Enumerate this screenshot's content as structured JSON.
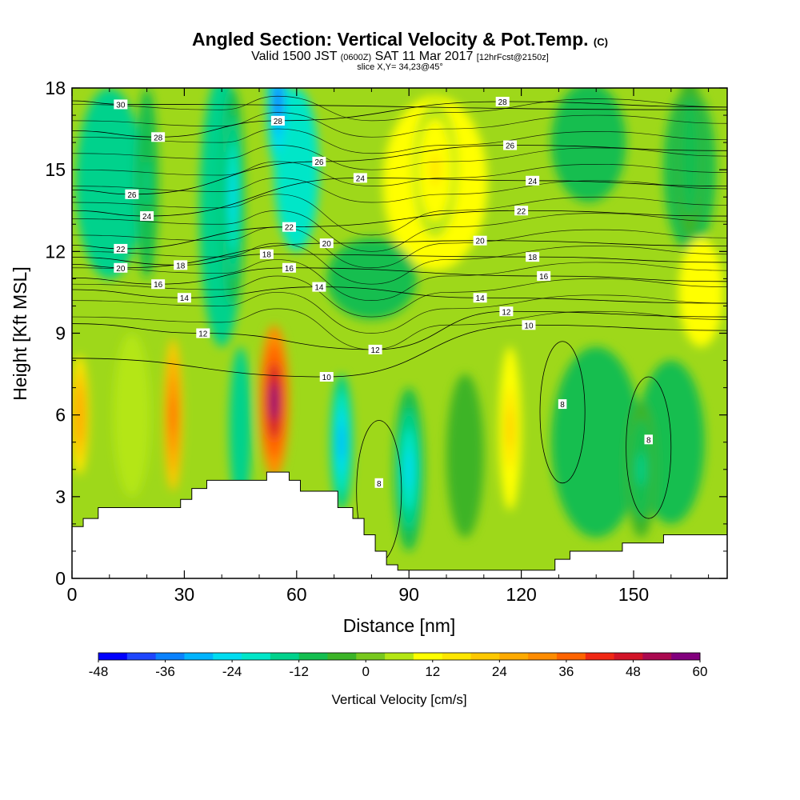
{
  "title": {
    "main": "Angled Section: Vertical Velocity & Pot.Temp.",
    "main_sup": "(C)",
    "valid_prefix": "Valid 1500 JST",
    "valid_small1": "(0600Z)",
    "valid_mid": "SAT 11 Mar 2017",
    "valid_small2": "[12hrFcst@2150z]",
    "slice": "slice X,Y= 34,23@45°"
  },
  "chart_data": {
    "type": "heatmap",
    "xlabel": "Distance [nm]",
    "ylabel": "Height [Kft MSL]",
    "xlim": [
      0,
      175
    ],
    "ylim": [
      0,
      18
    ],
    "x_ticks": [
      0,
      30,
      60,
      90,
      120,
      150
    ],
    "x_tick_labels": [
      "0",
      "30",
      "60",
      "90",
      "120",
      "150"
    ],
    "y_ticks": [
      0,
      3,
      6,
      9,
      12,
      15,
      18
    ],
    "y_tick_labels": [
      "0",
      "3",
      "6",
      "9",
      "12",
      "15",
      "18"
    ],
    "colorbar": {
      "title": "Vertical Velocity [cm/s]",
      "min": -48,
      "max": 60,
      "tick_values": [
        -48,
        -36,
        -24,
        -12,
        0,
        12,
        24,
        36,
        48,
        60
      ],
      "tick_labels": [
        "-48",
        "-36",
        "-24",
        "-12",
        "0",
        "12",
        "24",
        "36",
        "48",
        "60"
      ],
      "colors": [
        "#0000ff",
        "#1e46ff",
        "#0a82ff",
        "#00b4ff",
        "#00dcf0",
        "#00e6c8",
        "#00d28c",
        "#14be50",
        "#3cb428",
        "#78c81e",
        "#b4e614",
        "#ffff00",
        "#ffe600",
        "#ffc800",
        "#ffaa00",
        "#ff8c00",
        "#ff6400",
        "#f02814",
        "#d21428",
        "#aa0a50",
        "#82007d"
      ]
    },
    "terrain_kft": [
      [
        0,
        1.9
      ],
      [
        3,
        1.9
      ],
      [
        3,
        2.2
      ],
      [
        7,
        2.2
      ],
      [
        7,
        2.6
      ],
      [
        29,
        2.6
      ],
      [
        29,
        2.9
      ],
      [
        32,
        2.9
      ],
      [
        32,
        3.3
      ],
      [
        36,
        3.3
      ],
      [
        36,
        3.6
      ],
      [
        52,
        3.6
      ],
      [
        52,
        3.9
      ],
      [
        58,
        3.9
      ],
      [
        58,
        3.6
      ],
      [
        61,
        3.6
      ],
      [
        61,
        3.2
      ],
      [
        71,
        3.2
      ],
      [
        71,
        2.6
      ],
      [
        75,
        2.6
      ],
      [
        75,
        2.2
      ],
      [
        78,
        2.2
      ],
      [
        78,
        1.6
      ],
      [
        81,
        1.6
      ],
      [
        81,
        1.0
      ],
      [
        84,
        1.0
      ],
      [
        84,
        0.5
      ],
      [
        87,
        0.5
      ],
      [
        87,
        0.3
      ],
      [
        129,
        0.3
      ],
      [
        129,
        0.7
      ],
      [
        133,
        0.7
      ],
      [
        133,
        1.0
      ],
      [
        147,
        1.0
      ],
      [
        147,
        1.3
      ],
      [
        158,
        1.3
      ],
      [
        158,
        1.6
      ],
      [
        175,
        1.6
      ]
    ],
    "theta_contour_labels": [
      {
        "value": "30",
        "x": 13,
        "y": 17.4
      },
      {
        "value": "28",
        "x": 23,
        "y": 16.2
      },
      {
        "value": "28",
        "x": 55,
        "y": 16.8
      },
      {
        "value": "28",
        "x": 115,
        "y": 17.5
      },
      {
        "value": "26",
        "x": 16,
        "y": 14.1
      },
      {
        "value": "26",
        "x": 66,
        "y": 15.3
      },
      {
        "value": "26",
        "x": 117,
        "y": 15.9
      },
      {
        "value": "24",
        "x": 20,
        "y": 13.3
      },
      {
        "value": "24",
        "x": 77,
        "y": 14.7
      },
      {
        "value": "24",
        "x": 123,
        "y": 14.6
      },
      {
        "value": "22",
        "x": 13,
        "y": 12.1
      },
      {
        "value": "22",
        "x": 58,
        "y": 12.9
      },
      {
        "value": "22",
        "x": 120,
        "y": 13.5
      },
      {
        "value": "20",
        "x": 13,
        "y": 11.4
      },
      {
        "value": "20",
        "x": 68,
        "y": 12.3
      },
      {
        "value": "20",
        "x": 109,
        "y": 12.4
      },
      {
        "value": "18",
        "x": 29,
        "y": 11.5
      },
      {
        "value": "18",
        "x": 52,
        "y": 11.9
      },
      {
        "value": "18",
        "x": 123,
        "y": 11.8
      },
      {
        "value": "16",
        "x": 23,
        "y": 10.8
      },
      {
        "value": "16",
        "x": 58,
        "y": 11.4
      },
      {
        "value": "16",
        "x": 126,
        "y": 11.1
      },
      {
        "value": "14",
        "x": 30,
        "y": 10.3
      },
      {
        "value": "14",
        "x": 66,
        "y": 10.7
      },
      {
        "value": "14",
        "x": 109,
        "y": 10.3
      },
      {
        "value": "12",
        "x": 35,
        "y": 9.0
      },
      {
        "value": "12",
        "x": 81,
        "y": 8.4
      },
      {
        "value": "12",
        "x": 116,
        "y": 9.8
      },
      {
        "value": "10",
        "x": 68,
        "y": 7.4
      },
      {
        "value": "10",
        "x": 122,
        "y": 9.3
      },
      {
        "value": "8",
        "x": 82,
        "y": 3.5
      },
      {
        "value": "8",
        "x": 131,
        "y": 6.4
      },
      {
        "value": "8",
        "x": 154,
        "y": 5.1
      }
    ],
    "vertical_velocity_features": [
      {
        "kind": "updraft",
        "x": 54,
        "y": 6.5,
        "value": 60
      },
      {
        "kind": "updraft",
        "x": 27,
        "y": 6.0,
        "value": 40
      },
      {
        "kind": "updraft",
        "x": 2,
        "y": 6.0,
        "value": 30
      },
      {
        "kind": "updraft",
        "x": 117,
        "y": 5.5,
        "value": 20
      },
      {
        "kind": "updraft",
        "x": 97,
        "y": 15.0,
        "value": 15
      },
      {
        "kind": "downdraft",
        "x": 55,
        "y": 17.5,
        "value": -40
      },
      {
        "kind": "downdraft",
        "x": 72,
        "y": 5.0,
        "value": -30
      },
      {
        "kind": "downdraft",
        "x": 90,
        "y": 4.0,
        "value": -25
      },
      {
        "kind": "downdraft",
        "x": 43,
        "y": 14.0,
        "value": -24
      },
      {
        "kind": "downdraft",
        "x": 20,
        "y": 14.5,
        "value": -15
      },
      {
        "kind": "downdraft",
        "x": 152,
        "y": 4.0,
        "value": -14
      },
      {
        "kind": "downdraft",
        "x": 165,
        "y": 15.5,
        "value": -12
      }
    ]
  }
}
